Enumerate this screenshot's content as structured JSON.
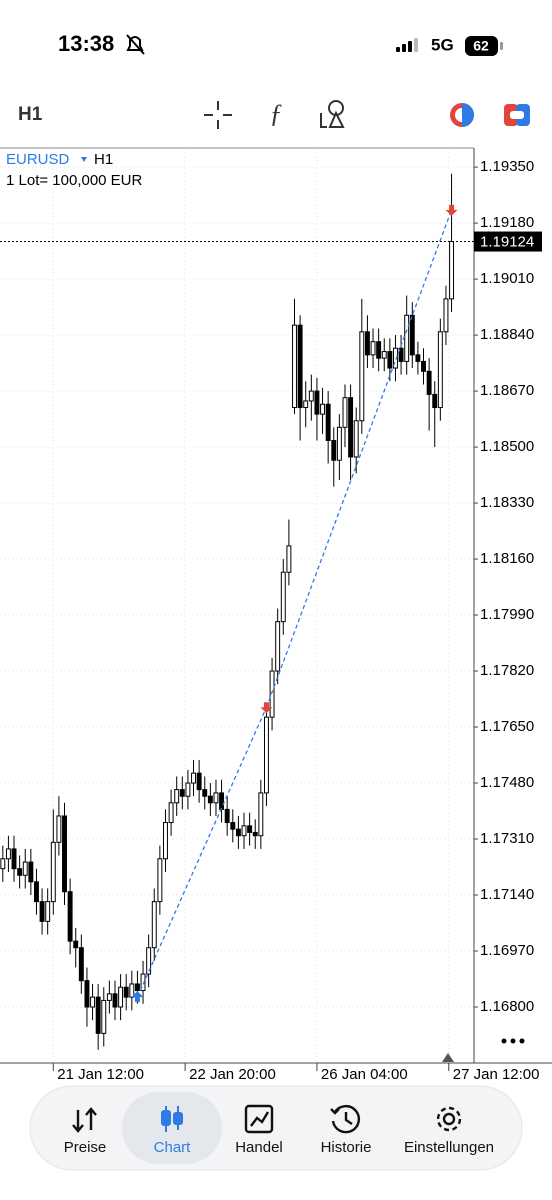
{
  "status_bar": {
    "time": "13:38",
    "network": "5G",
    "battery": "62"
  },
  "toolbar": {
    "timeframe": "H1"
  },
  "chart_data": {
    "type": "candlestick",
    "symbol": "EURUSD",
    "timeframe": "H1",
    "lot_info": "1 Lot= 100,000 EUR",
    "open": [
      1.1722,
      1.1725,
      1.1728,
      1.1722,
      1.172,
      1.1724,
      1.1718,
      1.1712,
      1.1706,
      1.1712,
      1.173,
      1.1738,
      1.1715,
      1.17,
      1.1698,
      1.1688,
      1.168,
      1.1683,
      1.1672,
      1.1682,
      1.1684,
      1.168,
      1.1686,
      1.1683,
      1.1687,
      1.1685,
      1.169,
      1.1698,
      1.1712,
      1.1725,
      1.1736,
      1.1742,
      1.1746,
      1.1744,
      1.1748,
      1.1751,
      1.1746,
      1.1744,
      1.1742,
      1.1745,
      1.174,
      1.1736,
      1.1734,
      1.1732,
      1.1735,
      1.1733,
      1.1732,
      1.1745,
      1.1768,
      1.1782,
      1.1797,
      1.1812,
      1.1862,
      1.1887,
      1.1862,
      1.1864,
      1.1867,
      1.186,
      1.1863,
      1.1852,
      1.1846,
      1.1856,
      1.1865,
      1.1847,
      1.1858,
      1.1885,
      1.1878,
      1.1882,
      1.1877,
      1.1879,
      1.1874,
      1.188,
      1.1876,
      1.189,
      1.1878,
      1.1876,
      1.1873,
      1.1866,
      1.1862,
      1.1885,
      1.1895
    ],
    "high": [
      1.1729,
      1.1732,
      1.1732,
      1.1726,
      1.1728,
      1.1728,
      1.1722,
      1.1716,
      1.1716,
      1.174,
      1.1744,
      1.1742,
      1.1719,
      1.1704,
      1.1702,
      1.1692,
      1.1687,
      1.1687,
      1.1686,
      1.1688,
      1.1688,
      1.169,
      1.169,
      1.1691,
      1.1691,
      1.1694,
      1.1702,
      1.1716,
      1.1729,
      1.174,
      1.1746,
      1.175,
      1.175,
      1.1752,
      1.1755,
      1.1755,
      1.175,
      1.1748,
      1.1749,
      1.1749,
      1.1744,
      1.174,
      1.1738,
      1.1739,
      1.1739,
      1.1737,
      1.1749,
      1.1772,
      1.1786,
      1.1801,
      1.1816,
      1.1828,
      1.1895,
      1.189,
      1.187,
      1.1872,
      1.1871,
      1.1868,
      1.1867,
      1.1856,
      1.186,
      1.1869,
      1.1869,
      1.1862,
      1.1895,
      1.189,
      1.1886,
      1.1886,
      1.1883,
      1.1883,
      1.1884,
      1.1884,
      1.1896,
      1.1894,
      1.1882,
      1.188,
      1.1877,
      1.187,
      1.1889,
      1.1899,
      1.1933
    ],
    "low": [
      1.1718,
      1.1721,
      1.1718,
      1.1716,
      1.1716,
      1.1714,
      1.1708,
      1.1702,
      1.1702,
      1.1708,
      1.1726,
      1.1711,
      1.1696,
      1.1692,
      1.1684,
      1.1674,
      1.1676,
      1.1667,
      1.1668,
      1.1678,
      1.1676,
      1.1676,
      1.1679,
      1.1679,
      1.1681,
      1.1681,
      1.1686,
      1.1694,
      1.1708,
      1.1721,
      1.1732,
      1.1738,
      1.174,
      1.174,
      1.1744,
      1.1742,
      1.174,
      1.1738,
      1.1738,
      1.1736,
      1.1732,
      1.173,
      1.1728,
      1.1728,
      1.1729,
      1.1728,
      1.1728,
      1.1741,
      1.1764,
      1.1778,
      1.1793,
      1.1808,
      1.186,
      1.1852,
      1.1856,
      1.1858,
      1.1852,
      1.1854,
      1.1845,
      1.1838,
      1.184,
      1.185,
      1.184,
      1.1842,
      1.1854,
      1.1874,
      1.1874,
      1.1873,
      1.1873,
      1.187,
      1.187,
      1.1872,
      1.1872,
      1.1874,
      1.1872,
      1.1869,
      1.1855,
      1.185,
      1.1858,
      1.1881,
      1.1891
    ],
    "close": [
      1.1725,
      1.1728,
      1.1722,
      1.172,
      1.1724,
      1.1718,
      1.1712,
      1.1706,
      1.1712,
      1.173,
      1.1738,
      1.1715,
      1.17,
      1.1698,
      1.1688,
      1.168,
      1.1683,
      1.1672,
      1.1682,
      1.1684,
      1.168,
      1.1686,
      1.1683,
      1.1687,
      1.1685,
      1.169,
      1.1698,
      1.1712,
      1.1725,
      1.1736,
      1.1742,
      1.1746,
      1.1744,
      1.1748,
      1.1751,
      1.1746,
      1.1744,
      1.1742,
      1.1745,
      1.174,
      1.1736,
      1.1734,
      1.1732,
      1.1735,
      1.1733,
      1.1732,
      1.1745,
      1.1768,
      1.1782,
      1.1797,
      1.1812,
      1.182,
      1.1887,
      1.1862,
      1.1864,
      1.1867,
      1.186,
      1.1863,
      1.1852,
      1.1846,
      1.1856,
      1.1865,
      1.1847,
      1.1858,
      1.1885,
      1.1878,
      1.1882,
      1.1877,
      1.1879,
      1.1874,
      1.188,
      1.1876,
      1.189,
      1.1878,
      1.1876,
      1.1873,
      1.1866,
      1.1862,
      1.1885,
      1.1895,
      1.19124
    ],
    "up_color": "#ffffff",
    "down_color": "#000000",
    "markers": [
      {
        "direction": "buy",
        "index": 24,
        "price": 1.1683,
        "color": "#2f7be6"
      },
      {
        "direction": "sell",
        "index": 47,
        "price": 1.1771,
        "color": "#e0473c"
      },
      {
        "direction": "sell",
        "index": 80,
        "price": 1.1922,
        "color": "#e0473c"
      }
    ],
    "connector_color": "#2f7be6",
    "last_price": 1.19124,
    "xlim": [
      -0.5,
      84
    ],
    "xticks": [
      {
        "value": 9,
        "label": "21 Jan 12:00"
      },
      {
        "value": 32.5,
        "label": "22 Jan 20:00"
      },
      {
        "value": 56,
        "label": "26 Jan 04:00"
      },
      {
        "value": 79.5,
        "label": "27 Jan 12:00"
      }
    ],
    "ylim": [
      1.1663,
      1.19408
    ],
    "yticks": [
      {
        "value": 1.168,
        "label": "1.16800"
      },
      {
        "value": 1.1697,
        "label": "1.16970"
      },
      {
        "value": 1.1714,
        "label": "1.17140"
      },
      {
        "value": 1.1731,
        "label": "1.17310"
      },
      {
        "value": 1.1748,
        "label": "1.17480"
      },
      {
        "value": 1.1765,
        "label": "1.17650"
      },
      {
        "value": 1.1782,
        "label": "1.17820"
      },
      {
        "value": 1.1799,
        "label": "1.17990"
      },
      {
        "value": 1.1816,
        "label": "1.18160"
      },
      {
        "value": 1.1833,
        "label": "1.18330"
      },
      {
        "value": 1.185,
        "label": "1.18500"
      },
      {
        "value": 1.1867,
        "label": "1.18670"
      },
      {
        "value": 1.1884,
        "label": "1.18840"
      },
      {
        "value": 1.1901,
        "label": "1.19010"
      },
      {
        "value": 1.1918,
        "label": "1.19180"
      },
      {
        "value": 1.1935,
        "label": "1.19350"
      }
    ],
    "grid": true
  },
  "nav": {
    "items": [
      "Preise",
      "Chart",
      "Handel",
      "Historie",
      "Einstellungen"
    ],
    "active": 1
  }
}
